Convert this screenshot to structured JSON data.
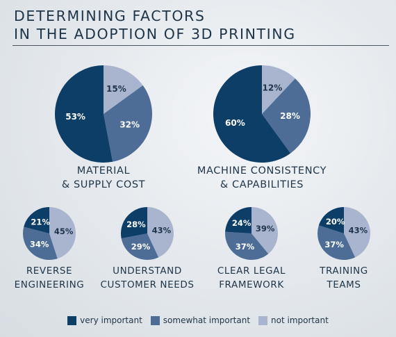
{
  "title": {
    "line1": "DETERMINING FACTORS",
    "line2": "IN THE ADOPTION OF 3D PRINTING"
  },
  "colors": {
    "very": "#0c3e68",
    "somewhat": "#4d6d96",
    "not": "#a9b5cf"
  },
  "legend": [
    {
      "label": "very important",
      "color": "#0c3e68"
    },
    {
      "label": "somewhat important",
      "color": "#4d6d96"
    },
    {
      "label": "not important",
      "color": "#a9b5cf"
    }
  ],
  "chart_data": [
    {
      "type": "pie",
      "title": [
        "MATERIAL",
        "& SUPPLY COST"
      ],
      "categories": [
        "very important",
        "somewhat important",
        "not important"
      ],
      "values": [
        53,
        32,
        15
      ]
    },
    {
      "type": "pie",
      "title": [
        "MACHINE CONSISTENCY",
        "& CAPABILITIES"
      ],
      "categories": [
        "very important",
        "somewhat important",
        "not important"
      ],
      "values": [
        60,
        28,
        12
      ]
    },
    {
      "type": "pie",
      "title": [
        "REVERSE",
        "ENGINEERING"
      ],
      "categories": [
        "very important",
        "somewhat important",
        "not important"
      ],
      "values": [
        21,
        34,
        45
      ]
    },
    {
      "type": "pie",
      "title": [
        "UNDERSTAND",
        "CUSTOMER NEEDS"
      ],
      "categories": [
        "very important",
        "somewhat important",
        "not important"
      ],
      "values": [
        28,
        29,
        43
      ]
    },
    {
      "type": "pie",
      "title": [
        "CLEAR LEGAL",
        "FRAMEWORK"
      ],
      "categories": [
        "very important",
        "somewhat important",
        "not important"
      ],
      "values": [
        24,
        37,
        39
      ]
    },
    {
      "type": "pie",
      "title": [
        "TRAINING",
        "TEAMS"
      ],
      "categories": [
        "very important",
        "somewhat important",
        "not important"
      ],
      "values": [
        20,
        37,
        43
      ]
    }
  ]
}
